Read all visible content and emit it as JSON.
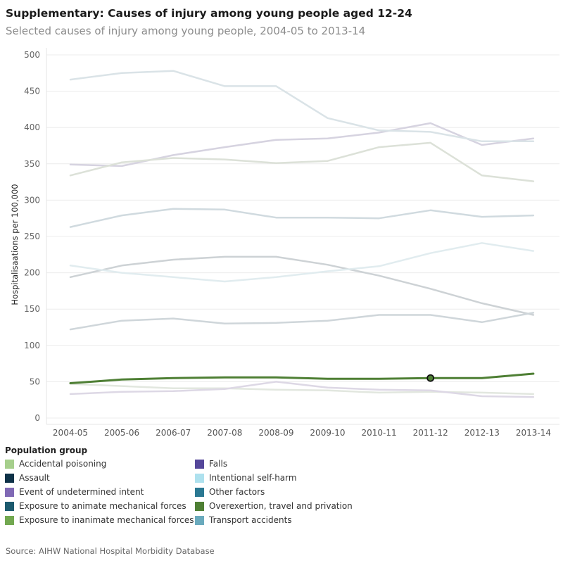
{
  "title": "Supplementary: Causes of injury among young people aged 12-24",
  "subtitle": "Selected causes of injury among young people, 2004-05 to 2013-14",
  "source": "Source: AIHW National Hospital Morbidity Database",
  "legend": {
    "title": "Population group",
    "items": [
      {
        "label": "Accidental poisoning",
        "color": "#a6cf8c"
      },
      {
        "label": "Falls",
        "color": "#55479a"
      },
      {
        "label": "Assault",
        "color": "#0e3248"
      },
      {
        "label": "Intentional self-harm",
        "color": "#aee1ee"
      },
      {
        "label": "Event of undetermined intent",
        "color": "#8069b5"
      },
      {
        "label": "Other factors",
        "color": "#2a7892"
      },
      {
        "label": "Exposure to animate mechanical forces",
        "color": "#1c5a6e"
      },
      {
        "label": "Overexertion, travel and privation",
        "color": "#4e7f34"
      },
      {
        "label": "Exposure to inanimate mechanical forces",
        "color": "#72a850"
      },
      {
        "label": "Transport accidents",
        "color": "#6aaabd"
      }
    ]
  },
  "chart_data": {
    "type": "line",
    "ylabel": "Hospitalisaations per 100,000",
    "xlabel": "",
    "ylim": [
      0,
      500
    ],
    "yticks": [
      0,
      50,
      100,
      150,
      200,
      250,
      300,
      350,
      400,
      450,
      500
    ],
    "grid": true,
    "categories": [
      "2004-05",
      "2005-06",
      "2006-07",
      "2007-08",
      "2008-09",
      "2009-10",
      "2010-11",
      "2011-12",
      "2012-13",
      "2013-14"
    ],
    "highlighted_series": "Overexertion, travel and privation",
    "highlighted_point": {
      "series": "Overexertion, travel and privation",
      "category": "2011-12",
      "value": 55
    },
    "series": [
      {
        "name": "Accidental poisoning",
        "color": "#e2e7df",
        "values": [
          47,
          44,
          41,
          41,
          39,
          38,
          35,
          36,
          35,
          33
        ]
      },
      {
        "name": "Falls",
        "color": "#d6d3e0",
        "values": [
          349,
          347,
          362,
          373,
          383,
          385,
          393,
          406,
          376,
          385
        ]
      },
      {
        "name": "Assault",
        "color": "#cdd2d5",
        "values": [
          194,
          210,
          218,
          222,
          222,
          211,
          196,
          178,
          158,
          142
        ]
      },
      {
        "name": "Intentional self-harm",
        "color": "#e1ecef",
        "values": [
          210,
          200,
          194,
          188,
          194,
          202,
          209,
          227,
          241,
          230
        ]
      },
      {
        "name": "Event of undetermined intent",
        "color": "#ddd8e5",
        "values": [
          33,
          36,
          37,
          40,
          50,
          42,
          39,
          38,
          30,
          29
        ]
      },
      {
        "name": "Other factors",
        "color": "#d0dadf",
        "values": [
          263,
          279,
          288,
          287,
          276,
          276,
          275,
          286,
          277,
          279
        ]
      },
      {
        "name": "Exposure to animate mechanical forces",
        "color": "#cfd6da",
        "values": [
          122,
          134,
          137,
          130,
          131,
          134,
          142,
          142,
          132,
          145
        ]
      },
      {
        "name": "Exposure to inanimate mechanical forces",
        "color": "#dce1d8",
        "values": [
          334,
          352,
          358,
          356,
          351,
          354,
          373,
          379,
          334,
          326
        ]
      },
      {
        "name": "Transport accidents",
        "color": "#dae3e7",
        "values": [
          466,
          475,
          478,
          457,
          457,
          413,
          396,
          394,
          381,
          381
        ]
      },
      {
        "name": "Overexertion, travel and privation",
        "color": "#4e7f34",
        "values": [
          48,
          53,
          55,
          56,
          56,
          54,
          54,
          55,
          55,
          61
        ]
      }
    ]
  }
}
